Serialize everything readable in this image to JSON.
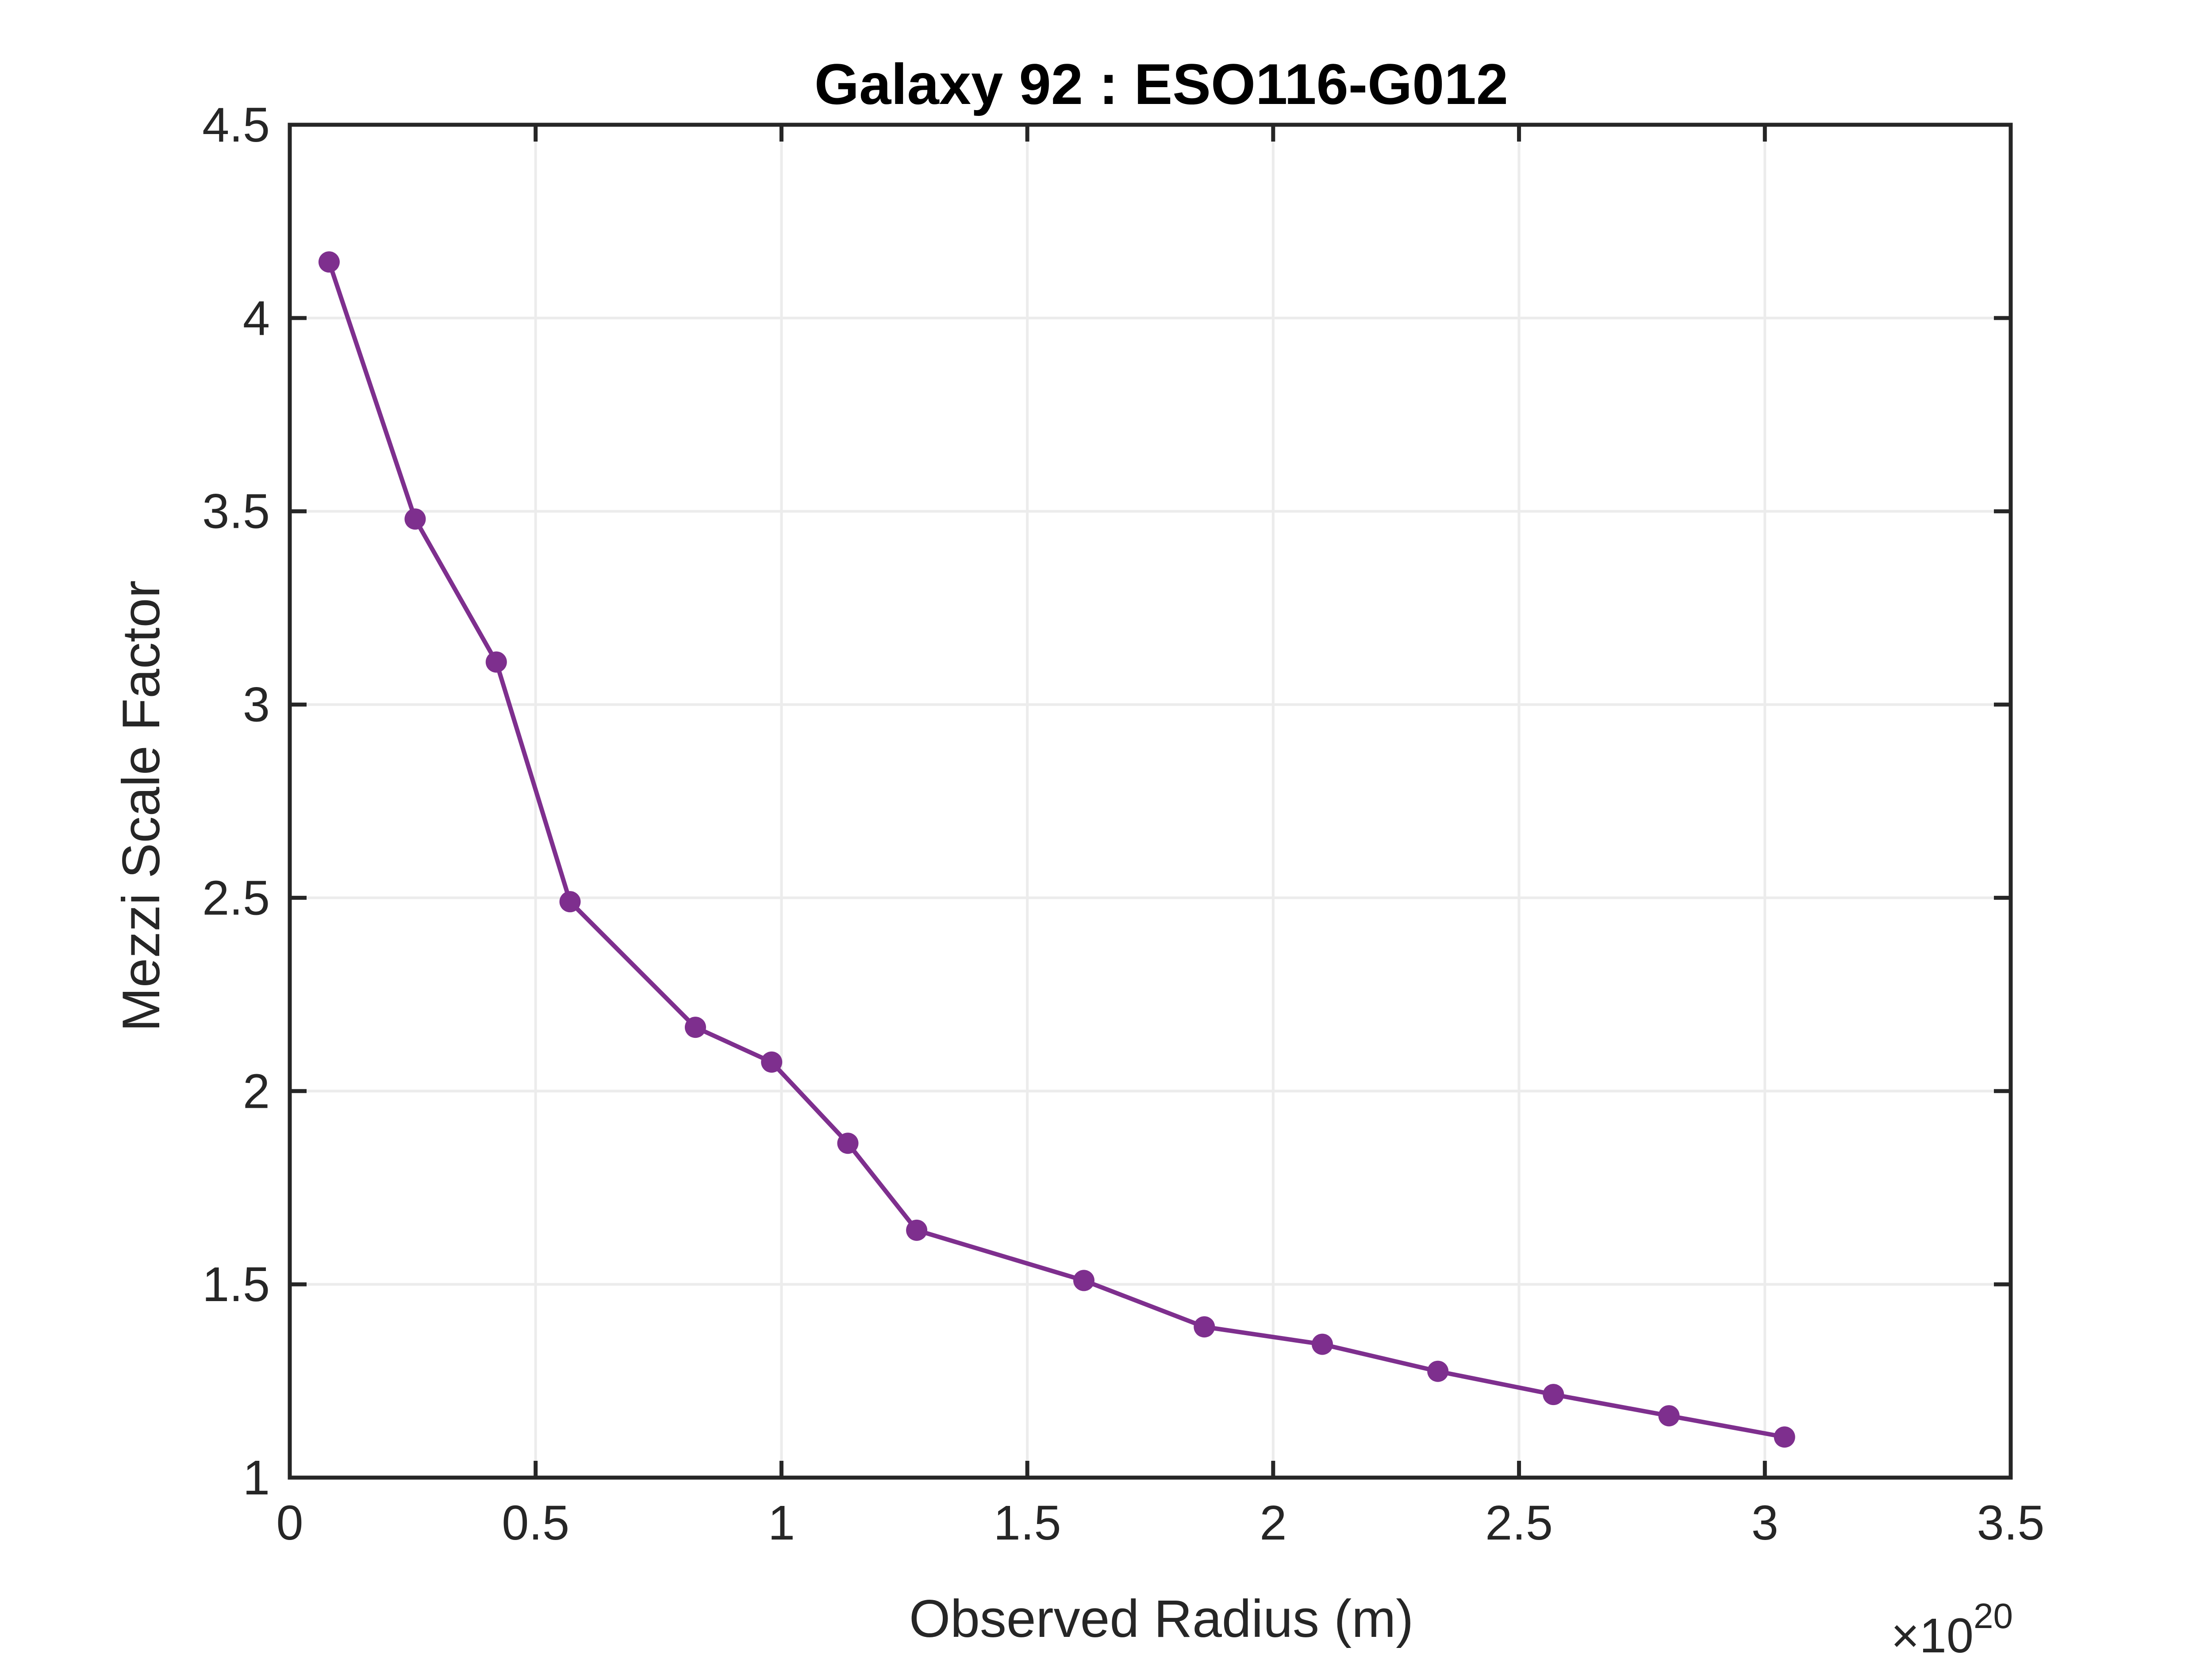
{
  "chart_data": {
    "type": "line",
    "title": "Galaxy 92 : ESO116-G012",
    "xlabel": "Observed Radius (m)",
    "ylabel": "Mezzi Scale Factor",
    "x_multiplier": {
      "prefix": "×10",
      "exponent": "20"
    },
    "xlim": [
      0,
      3.5
    ],
    "ylim": [
      1,
      4.5
    ],
    "xticks": [
      "0",
      "0.5",
      "1",
      "1.5",
      "2",
      "2.5",
      "3",
      "3.5"
    ],
    "yticks": [
      "1",
      "1.5",
      "2",
      "2.5",
      "3",
      "3.5",
      "4",
      "4.5"
    ],
    "grid": true,
    "series": [
      {
        "color": "#7e2f8e",
        "x": [
          0.08,
          0.255,
          0.42,
          0.57,
          0.825,
          0.98,
          1.135,
          1.275,
          1.615,
          1.86,
          2.1,
          2.335,
          2.57,
          2.805,
          3.04
        ],
        "y": [
          4.145,
          3.48,
          3.11,
          2.49,
          2.165,
          2.075,
          1.865,
          1.64,
          1.51,
          1.39,
          1.345,
          1.275,
          1.215,
          1.16,
          1.105
        ]
      }
    ]
  }
}
